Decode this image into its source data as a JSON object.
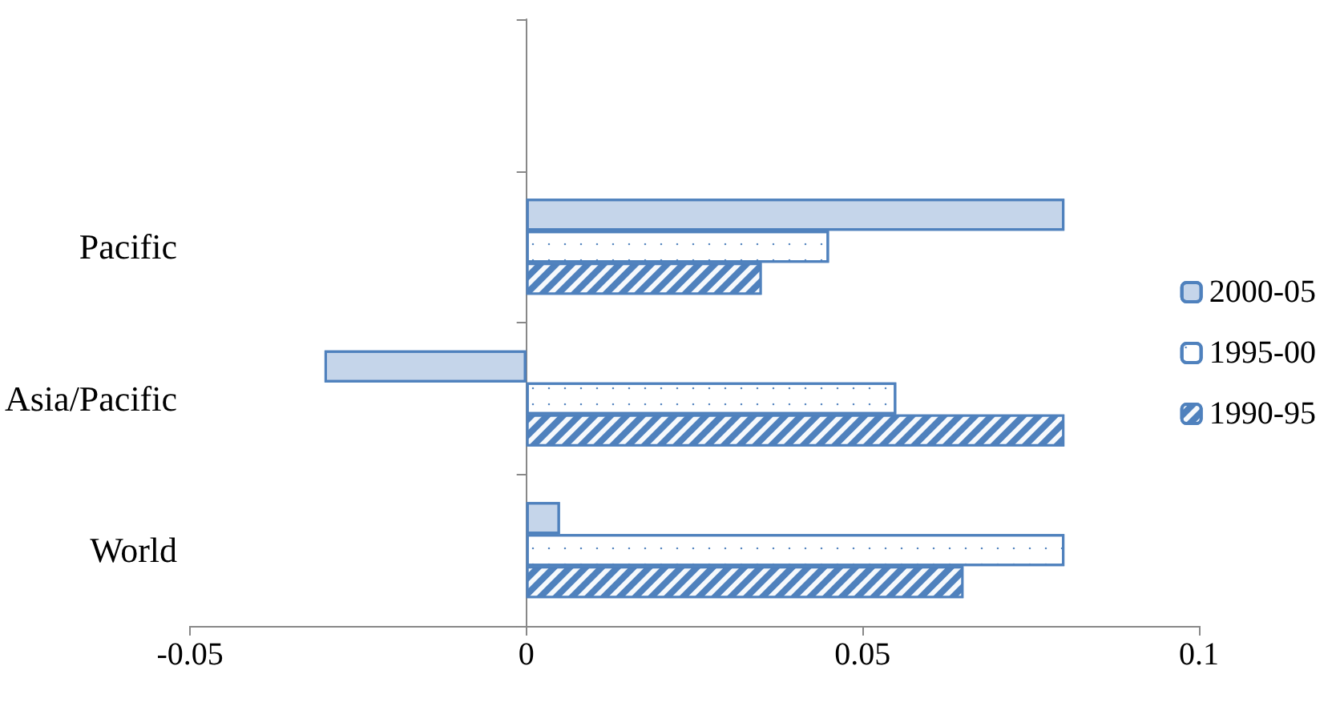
{
  "chart_data": {
    "type": "bar",
    "orientation": "horizontal",
    "categories": [
      null,
      "Pacific",
      "Asia/Pacific",
      "World"
    ],
    "series": [
      {
        "name": "2000-05",
        "color": "#c5d5ea",
        "values": [
          null,
          0.08,
          -0.03,
          0.005
        ]
      },
      {
        "name": "1995-00",
        "color": "#ffffff",
        "values": [
          null,
          0.045,
          0.055,
          0.08
        ]
      },
      {
        "name": "1990-95",
        "color": "#4f81bd",
        "values": [
          null,
          0.035,
          0.08,
          0.065
        ]
      }
    ],
    "xlim": [
      -0.05,
      0.1
    ],
    "xticks": [
      -0.05,
      0,
      0.05,
      0.1
    ],
    "legend": "right"
  }
}
